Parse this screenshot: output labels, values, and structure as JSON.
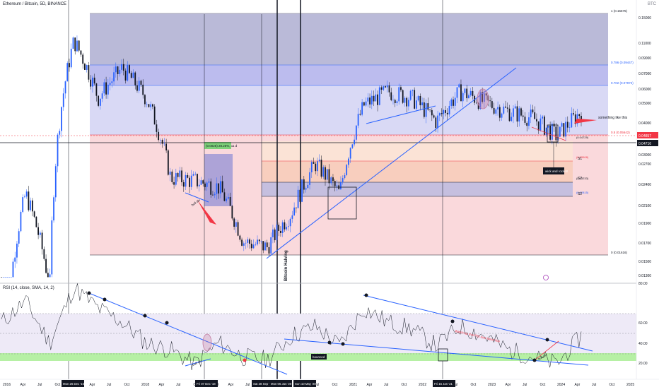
{
  "header": {
    "symbol": "Ethereum / Bitcoin, 5D, BINANCE",
    "currency_button": "BTC"
  },
  "rsi_header": "RSI (14, close, SMA, 14, 2)",
  "price_axis": {
    "ticks": [
      "0.15000",
      "0.11000",
      "0.09000",
      "0.07000",
      "0.06000",
      "0.05000",
      "0.04000",
      "0.03500",
      "0.03000",
      "0.02700",
      "0.02400",
      "0.02100",
      "0.01900",
      "0.01700",
      "0.01500",
      "0.01300"
    ],
    "current_price": "0.04857",
    "last_price": "0.04716"
  },
  "rsi_axis": {
    "ticks": [
      "80.00",
      "60.00",
      "40.00",
      "20.00"
    ]
  },
  "time_axis": {
    "labels": [
      "2016",
      "Apr",
      "Jul",
      "Oct",
      "2017",
      "Apr",
      "Jul",
      "Oct",
      "2018",
      "Apr",
      "Jul",
      "Oct",
      "2019",
      "Apr",
      "Jul",
      "Oct",
      "2020",
      "Apr",
      "Jul",
      "Oct",
      "2021",
      "Apr",
      "Jul",
      "Oct",
      "2022",
      "Apr",
      "Jul",
      "Oct",
      "2023",
      "Apr",
      "Jul",
      "Oct",
      "2024",
      "Apr",
      "Jul",
      "Oct",
      "2025",
      "Apr"
    ],
    "date_badges": [
      "Mon 26 Dec '16",
      "Fri 07 Dec '18",
      "Sat 28 Sep '19",
      "Mon 06 Jan '20",
      "Sun 10 May '20",
      "Fri 15 Jan '21"
    ]
  },
  "fib": {
    "top_label": "1 (0.15675)",
    "l786": "0.786 (0.09447)",
    "l702": "0.702 (0.07972)",
    "l05": "0.5 (0.05642)",
    "bottom_label": "0 (0.01616)",
    "inner_top": "(0.04729)",
    "inner_2": "(0.03908)",
    "inner_3": "(0.03233)",
    "inner_4": "(0.02815)"
  },
  "annotations": {
    "something_like_this": "something like this",
    "wick_and_rocket": "wick and rocket!",
    "bull_div_1": "bull div",
    "bull_div_2": "bull div",
    "bull_div_3": "bull div",
    "bitcoin_halving": "Bitcoin Halving",
    "measure": "(0.0025) 28.25%, 11 d",
    "watch_rsi": "Watch for this RSI dwn trend line",
    "s1": "S1",
    "s2": "S2",
    "s3": "S2",
    "rsi_badge": "bounced"
  },
  "colors": {
    "candle_up": "#2962ff",
    "candle_down": "#131722",
    "fib_top": "#9c9cc8",
    "fib_mid": "#a5a5e8",
    "fib_low": "#d9d9f5",
    "red_zone": "#f9d0d3",
    "rsi_band": "#eeeaf7",
    "rsi_green": "#b6f0a4",
    "trend_line": "#2962ff",
    "arrow_red": "#f23645"
  },
  "chart_data": {
    "type": "line",
    "title": "Ethereum / Bitcoin, 5D, BINANCE",
    "xlabel": "",
    "ylabel": "",
    "y_scale": "log",
    "ylim": [
      0.013,
      0.17
    ],
    "x": [
      "2016-01",
      "2016-06",
      "2017-01",
      "2017-06",
      "2017-09",
      "2018-01",
      "2018-06",
      "2018-09",
      "2019-01",
      "2019-06",
      "2019-09",
      "2020-01",
      "2020-06",
      "2020-09",
      "2021-01",
      "2021-04",
      "2021-09",
      "2022-01",
      "2022-06",
      "2022-09",
      "2023-01",
      "2023-06",
      "2023-09",
      "2024-01",
      "2024-06"
    ],
    "series": [
      {
        "values": [
          0.002,
          0.03,
          0.012,
          0.13,
          0.075,
          0.1,
          0.075,
          0.035,
          0.034,
          0.032,
          0.019,
          0.018,
          0.025,
          0.04,
          0.03,
          0.07,
          0.08,
          0.075,
          0.06,
          0.08,
          0.072,
          0.066,
          0.062,
          0.052,
          0.066
        ]
      }
    ],
    "rsi": {
      "ylim": [
        20,
        80
      ],
      "values": [
        55,
        70,
        40,
        80,
        65,
        55,
        40,
        35,
        25,
        40,
        30,
        28,
        45,
        52,
        38,
        65,
        55,
        50,
        38,
        52,
        45,
        35,
        30,
        25,
        45
      ]
    }
  }
}
